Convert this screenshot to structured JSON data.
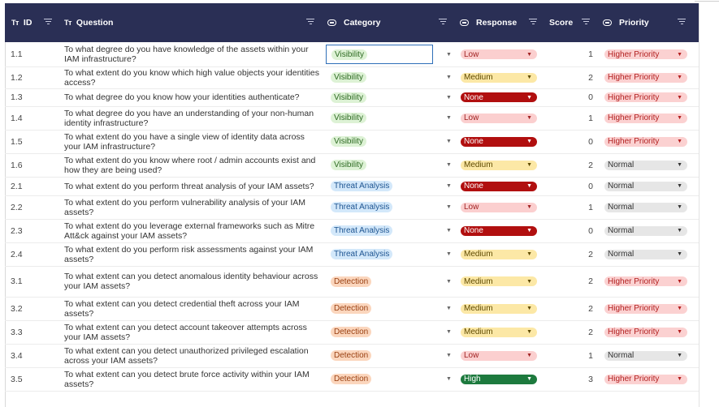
{
  "header": {
    "id_label": "ID",
    "question_label": "Question",
    "category_label": "Category",
    "response_label": "Response",
    "score_label": "Score",
    "priority_label": "Priority",
    "text_type_icon": "Tт"
  },
  "rows": [
    {
      "id": "1.1",
      "question": "To what degree do you have knowledge of the assets within your IAM infrastructure?",
      "category": "Visibility",
      "response": "Low",
      "score": "1",
      "priority": "Higher Priority"
    },
    {
      "id": "1.2",
      "question": "To what extent do you know which high value objects your identities access?",
      "category": "Visibility",
      "response": "Medium",
      "score": "2",
      "priority": "Higher Priority"
    },
    {
      "id": "1.3",
      "question": "To what degree do you know how your identities authenticate?",
      "category": "Visibility",
      "response": "None",
      "score": "0",
      "priority": "Higher Priority"
    },
    {
      "id": "1.4",
      "question": "To what degree do you have an understanding of your non-human identity infrastructure?",
      "category": "Visibility",
      "response": "Low",
      "score": "1",
      "priority": "Higher Priority"
    },
    {
      "id": "1.5",
      "question": "To what extent do you have a single view of identity data across your IAM infrastructure?",
      "category": "Visibility",
      "response": "None",
      "score": "0",
      "priority": "Higher Priority"
    },
    {
      "id": "1.6",
      "question": "To what extent do you know where root / admin accounts exist and how they are being used?",
      "category": "Visibility",
      "response": "Medium",
      "score": "2",
      "priority": "Normal"
    },
    {
      "id": "2.1",
      "question": "To what extent do you perform threat analysis of your IAM assets?",
      "category": "Threat Analysis",
      "response": "None",
      "score": "0",
      "priority": "Normal"
    },
    {
      "id": "2.2",
      "question": "To what extent do you perform vulnerability analysis of your IAM assets?",
      "category": "Threat Analysis",
      "response": "Low",
      "score": "1",
      "priority": "Normal"
    },
    {
      "id": "2.3",
      "question": "To what extent do you leverage external frameworks such as Mitre Att&ck against your IAM assets?",
      "category": "Threat Analysis",
      "response": "None",
      "score": "0",
      "priority": "Normal"
    },
    {
      "id": "2.4",
      "question": "To what extent do you perform risk assessments against your IAM assets?",
      "category": "Threat Analysis",
      "response": "Medium",
      "score": "2",
      "priority": "Normal"
    },
    {
      "id": "3.1",
      "question": "To what extent can you detect anomalous identity behaviour across your IAM assets?",
      "category": "Detection",
      "response": "Medium",
      "score": "2",
      "priority": "Higher Priority"
    },
    {
      "id": "3.2",
      "question": "To what extent can you detect credential theft across your IAM assets?",
      "category": "Detection",
      "response": "Medium",
      "score": "2",
      "priority": "Higher Priority"
    },
    {
      "id": "3.3",
      "question": "To what extent can you detect account takeover attempts across your IAM assets?",
      "category": "Detection",
      "response": "Medium",
      "score": "2",
      "priority": "Higher Priority"
    },
    {
      "id": "3.4",
      "question": "To what extent can you detect unauthorized privileged escalation across your IAM assets?",
      "category": "Detection",
      "response": "Low",
      "score": "1",
      "priority": "Normal"
    },
    {
      "id": "3.5",
      "question": "To what extent can you detect brute force activity within your IAM assets?",
      "category": "Detection",
      "response": "High",
      "score": "3",
      "priority": "Higher Priority"
    }
  ],
  "colors": {
    "header_bg": "#2a2f55",
    "none": "#b10f0f",
    "high": "#1d7a3e",
    "medium": "#fce8a6",
    "low": "#fbcfcf",
    "selection": "#2f6fb8"
  }
}
